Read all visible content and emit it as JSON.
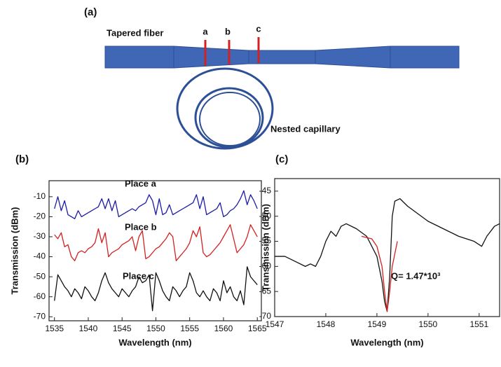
{
  "diagram": {
    "panel_label": "(a)",
    "fiber_label": "Tapered fiber",
    "positions": [
      "a",
      "b",
      "c"
    ],
    "capillary_label": "Nested capillary"
  },
  "chart_data": [
    {
      "type": "line",
      "panel_label": "(b)",
      "x_label": "Wavelength (nm)",
      "y_label": "Transmission (dBm)",
      "annotations": [
        "Place a",
        "Place b",
        "Place c"
      ],
      "xlim": [
        1534.2,
        1565.6
      ],
      "xticks": [
        1535,
        1540,
        1545,
        1550,
        1555,
        1560,
        1565
      ],
      "ylim": [
        -72,
        -2
      ],
      "yticks": [
        -70,
        -60,
        -50,
        -40,
        -30,
        -20,
        -10
      ],
      "x": [
        1535,
        1535.5,
        1536,
        1536.5,
        1537,
        1537.5,
        1538,
        1538.5,
        1539,
        1539.5,
        1540,
        1540.5,
        1541,
        1541.5,
        1542,
        1542.5,
        1543,
        1543.5,
        1544,
        1544.5,
        1545,
        1545.5,
        1546,
        1546.5,
        1547,
        1547.5,
        1548,
        1548.5,
        1549,
        1549.5,
        1550,
        1550.5,
        1551,
        1551.5,
        1552,
        1552.5,
        1553,
        1553.5,
        1554,
        1554.5,
        1555,
        1555.5,
        1556,
        1556.5,
        1557,
        1557.5,
        1558,
        1558.5,
        1559,
        1559.5,
        1560,
        1560.5,
        1561,
        1561.5,
        1562,
        1562.5,
        1563,
        1563.5,
        1564,
        1564.5,
        1565
      ],
      "series": [
        {
          "color": "#1c1ca8",
          "values": [
            -16,
            -10,
            -17,
            -12,
            -19,
            -20,
            -21,
            -17,
            -20,
            -19,
            -18,
            -17,
            -16,
            -15,
            -11,
            -16,
            -11,
            -17,
            -12,
            -20,
            -19,
            -18,
            -17,
            -16,
            -17,
            -15,
            -14,
            -13,
            -9,
            -12,
            -19,
            -11,
            -19,
            -18,
            -14,
            -19,
            -18,
            -17,
            -16,
            -15,
            -14,
            -13,
            -9,
            -16,
            -10,
            -19,
            -18,
            -17,
            -16,
            -13,
            -20,
            -19,
            -17,
            -16,
            -14,
            -11,
            -7,
            -14,
            -9,
            -12,
            -16
          ]
        },
        {
          "color": "#d42020",
          "values": [
            -29,
            -31,
            -28,
            -35,
            -34,
            -40,
            -42,
            -38,
            -37,
            -38,
            -36,
            -35,
            -33,
            -26,
            -33,
            -28,
            -40,
            -38,
            -37,
            -36,
            -34,
            -33,
            -32,
            -30,
            -37,
            -30,
            -27,
            -41,
            -40,
            -38,
            -36,
            -35,
            -33,
            -31,
            -28,
            -30,
            -42,
            -40,
            -38,
            -36,
            -33,
            -27,
            -30,
            -25,
            -38,
            -40,
            -39,
            -37,
            -35,
            -33,
            -30,
            -27,
            -24,
            -31,
            -38,
            -36,
            -34,
            -30,
            -24,
            -27,
            -30
          ]
        },
        {
          "color": "#111111",
          "values": [
            -62,
            -49,
            -52,
            -55,
            -57,
            -60,
            -56,
            -58,
            -61,
            -55,
            -57,
            -60,
            -62,
            -58,
            -52,
            -48,
            -53,
            -56,
            -58,
            -60,
            -56,
            -58,
            -60,
            -57,
            -55,
            -50,
            -53,
            -52,
            -49,
            -67,
            -48,
            -52,
            -57,
            -60,
            -62,
            -55,
            -57,
            -60,
            -57,
            -55,
            -48,
            -52,
            -58,
            -60,
            -57,
            -60,
            -62,
            -56,
            -58,
            -62,
            -52,
            -58,
            -55,
            -60,
            -62,
            -57,
            -64,
            -45,
            -50,
            -52,
            -54
          ]
        }
      ]
    },
    {
      "type": "line",
      "panel_label": "(c)",
      "x_label": "Wavelength (nm)",
      "y_label": "Transmission (dBm)",
      "annotations": [
        "Q= 1.47*10³"
      ],
      "xlim": [
        1547,
        1551.4
      ],
      "xticks": [
        1547,
        1548,
        1549,
        1550,
        1551
      ],
      "ylim": [
        -70,
        -42.5
      ],
      "yticks": [
        -70,
        -65,
        -60,
        -55,
        -50,
        -45
      ],
      "series": [
        {
          "color": "#111111",
          "x": [
            1547,
            1547.2,
            1547.4,
            1547.6,
            1547.7,
            1547.8,
            1547.9,
            1548,
            1548.1,
            1548.2,
            1548.3,
            1548.4,
            1548.6,
            1548.8,
            1549,
            1549.1,
            1549.15,
            1549.2,
            1549.25,
            1549.3,
            1549.35,
            1549.45,
            1549.6,
            1549.8,
            1550,
            1550.3,
            1550.6,
            1550.9,
            1551.05,
            1551.15,
            1551.3,
            1551.4
          ],
          "values": [
            -58,
            -58,
            -59,
            -60,
            -59.5,
            -60,
            -58,
            -55,
            -53,
            -54,
            -52,
            -51.5,
            -52.5,
            -54,
            -58,
            -63,
            -67,
            -69,
            -62,
            -50,
            -47,
            -46.5,
            -48,
            -49.5,
            -51,
            -52.5,
            -54,
            -55,
            -56,
            -54,
            -52,
            -51.5
          ]
        },
        {
          "color": "#d42020",
          "x": [
            1548.7,
            1548.9,
            1549,
            1549.1,
            1549.15,
            1549.2,
            1549.25,
            1549.3,
            1549.4
          ],
          "values": [
            -54,
            -54.5,
            -56,
            -60,
            -65,
            -69,
            -65,
            -60,
            -55
          ]
        }
      ]
    }
  ]
}
